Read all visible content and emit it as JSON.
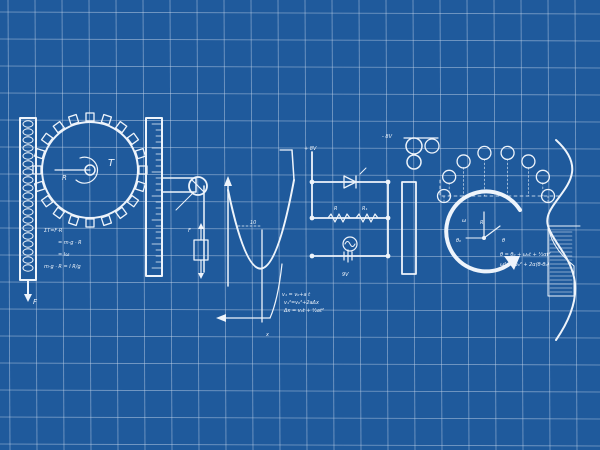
{
  "colors": {
    "background": "#1f5a9c",
    "grid": "#c9d9ec",
    "ink": "#eef4fb"
  },
  "labels": {
    "torque_T": "T",
    "radius_R": "R",
    "force_F": "F",
    "eq1": "ΣT=F·R",
    "eq2": "= m·g · R",
    "eq3": "= Iω",
    "eq4": "m·g · R = I R/g",
    "plus_v": "+ 8V",
    "minus_v": "- 8V",
    "res_r": "R",
    "res_r2": "R₁",
    "volt": "9V",
    "f_label": "F",
    "ten": "10",
    "x_label": "x",
    "kin1": "v₁ = v₀+a t",
    "kin2": "v₁²=v₀²+2aΔx",
    "kin3": "Δx = v₀t + ½at²",
    "theta0": "θ₀",
    "theta": "θ",
    "r_label": "R",
    "w_label": "ω",
    "rot1": "θ = θ₀ + ω₀t + ½αt²",
    "rot2": "ω² = ω₀² + 2α(θ-θ₀)"
  }
}
